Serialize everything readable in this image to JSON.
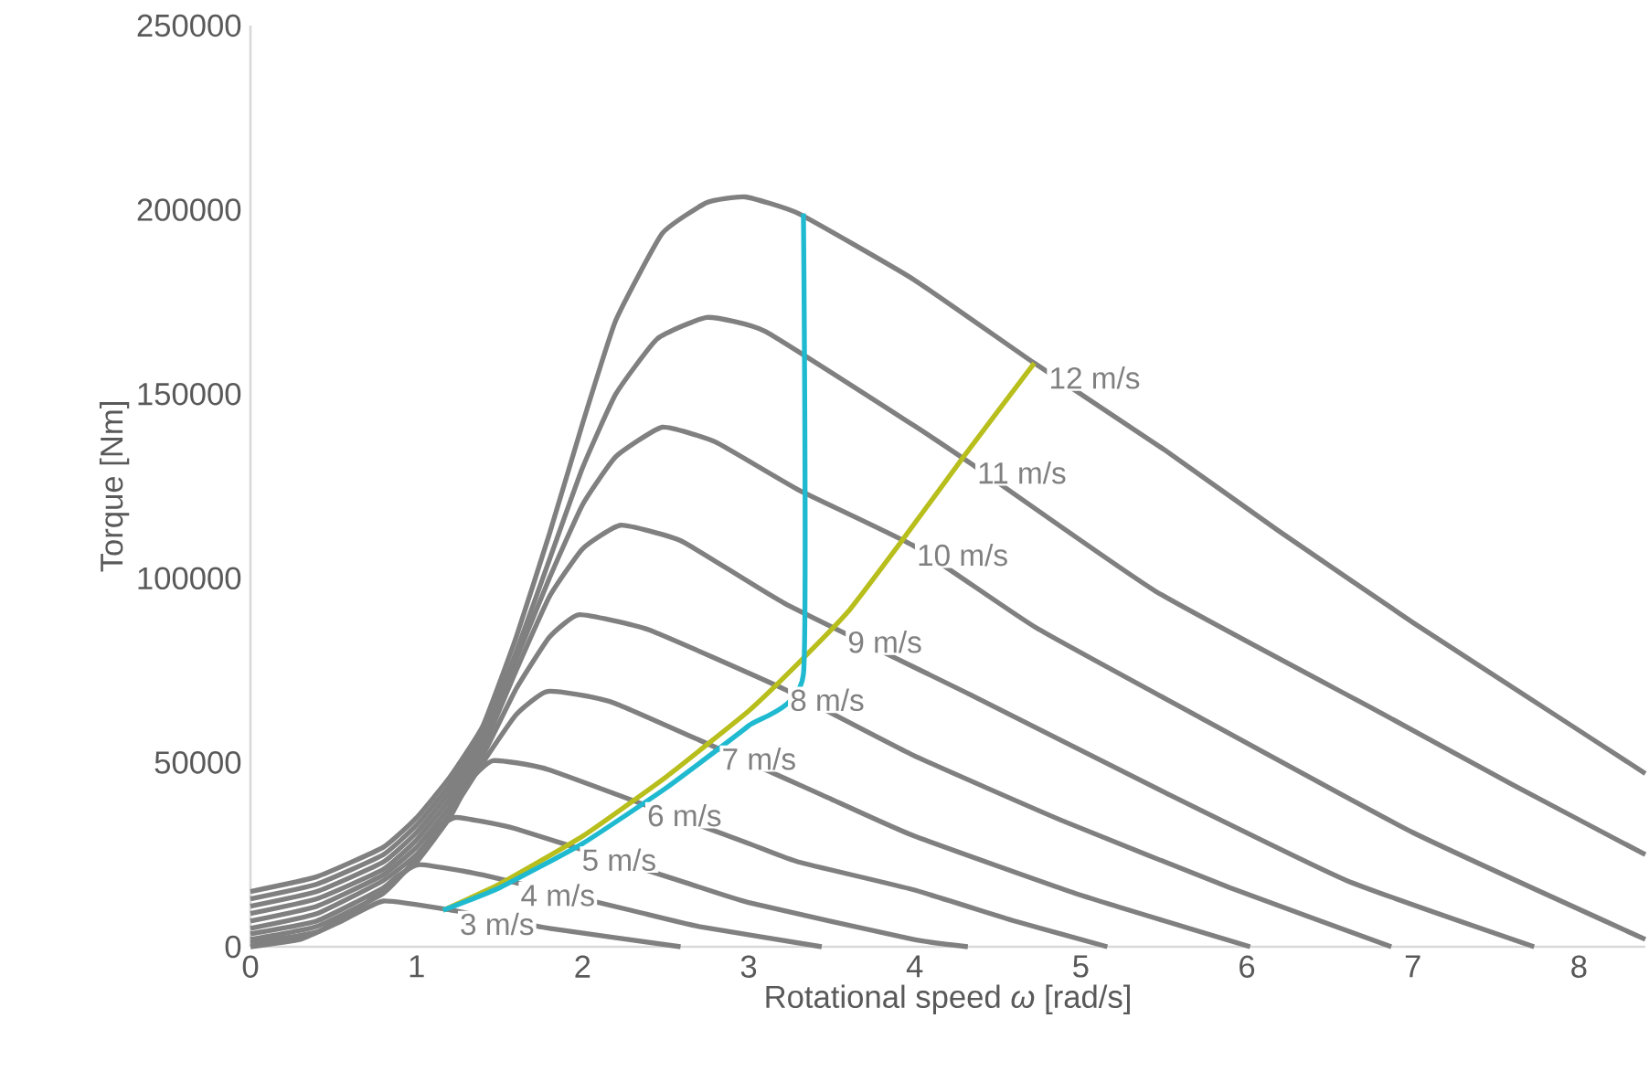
{
  "chart_data": {
    "type": "line",
    "xlabel": "Rotational speed *ω* [rad/s]",
    "ylabel": "Torque [Nm]",
    "xlim": [
      0,
      8.4
    ],
    "ylim": [
      0,
      250000
    ],
    "xticks": [
      0,
      1,
      2,
      3,
      4,
      5,
      6,
      7,
      8
    ],
    "yticks": [
      0,
      50000,
      100000,
      150000,
      200000,
      250000
    ],
    "grid": false,
    "marker": "none",
    "line_style": "solid",
    "series": [
      {
        "name": "3 m/s",
        "color": "#808080",
        "x": [
          0,
          0.3,
          0.55,
          0.8,
          1.2,
          1.8,
          2.59
        ],
        "values": [
          0,
          2000,
          7000,
          12400,
          10000,
          5000,
          0
        ]
      },
      {
        "name": "4 m/s",
        "color": "#808080",
        "x": [
          0,
          0.4,
          0.7,
          0.88,
          1.02,
          1.4,
          2.3,
          2.7,
          3.44
        ],
        "values": [
          1000,
          4000,
          12000,
          19000,
          22300,
          19500,
          9800,
          5500,
          0
        ]
      },
      {
        "name": "5 m/s",
        "color": "#808080",
        "x": [
          0,
          0.4,
          0.8,
          1.0,
          1.12,
          1.24,
          1.6,
          2.6,
          3.0,
          3.99,
          4.32
        ],
        "values": [
          2000,
          5500,
          14500,
          24000,
          32000,
          35100,
          32000,
          17700,
          12000,
          2000,
          0
        ]
      },
      {
        "name": "6 m/s",
        "color": "#808080",
        "x": [
          0,
          0.4,
          0.8,
          1.0,
          1.2,
          1.32,
          1.46,
          1.8,
          3.0,
          3.3,
          3.99,
          4.6,
          5.16
        ],
        "values": [
          3500,
          7000,
          16000,
          23000,
          35000,
          45000,
          50500,
          48000,
          28000,
          23000,
          15500,
          7000,
          0
        ]
      },
      {
        "name": "7 m/s",
        "color": "#808080",
        "x": [
          0,
          0.4,
          0.8,
          1.0,
          1.2,
          1.4,
          1.6,
          1.79,
          2.2,
          3.5,
          3.99,
          5.0,
          6.02
        ],
        "values": [
          5000,
          9000,
          18000,
          25000,
          36000,
          50000,
          63000,
          69300,
          66000,
          40000,
          30200,
          14000,
          0
        ]
      },
      {
        "name": "8 m/s",
        "color": "#808080",
        "x": [
          0,
          0.4,
          0.8,
          1.0,
          1.2,
          1.4,
          1.6,
          1.8,
          1.98,
          2.4,
          3.22,
          3.99,
          4.9,
          5.9,
          6.87
        ],
        "values": [
          7000,
          11000,
          19500,
          27000,
          38000,
          52000,
          70000,
          84000,
          90100,
          86000,
          69800,
          52000,
          34000,
          16000,
          0
        ]
      },
      {
        "name": "9 m/s",
        "color": "#808080",
        "x": [
          0,
          0.4,
          0.8,
          1.0,
          1.2,
          1.4,
          1.6,
          1.8,
          2.0,
          2.23,
          2.6,
          3.22,
          4.34,
          5.5,
          6.6,
          7.73
        ],
        "values": [
          9000,
          13000,
          21000,
          29000,
          40000,
          54000,
          75000,
          95000,
          108000,
          114400,
          110000,
          93100,
          68300,
          42000,
          18000,
          0
        ]
      },
      {
        "name": "10 m/s",
        "color": "#808080",
        "x": [
          0,
          0.4,
          0.8,
          1.0,
          1.2,
          1.4,
          1.6,
          1.8,
          2.0,
          2.2,
          2.48,
          2.8,
          3.3,
          3.99,
          4.73,
          5.67,
          7.0,
          8.4
        ],
        "values": [
          11000,
          15000,
          23000,
          31000,
          42000,
          56000,
          78000,
          100000,
          120000,
          133000,
          141000,
          137000,
          124000,
          108900,
          86600,
          63400,
          31000,
          2000
        ]
      },
      {
        "name": "11 m/s",
        "color": "#808080",
        "x": [
          0,
          0.4,
          0.8,
          1.0,
          1.2,
          1.4,
          1.6,
          1.8,
          2.0,
          2.2,
          2.45,
          2.75,
          3.1,
          3.99,
          4.32,
          5.45,
          6.81,
          7.6,
          8.4
        ],
        "values": [
          13000,
          17000,
          25000,
          33000,
          44000,
          58000,
          80000,
          105000,
          130000,
          150000,
          165000,
          170800,
          167000,
          141600,
          131700,
          96500,
          63400,
          44000,
          25000
        ]
      },
      {
        "name": "12 m/s",
        "color": "#808080",
        "x": [
          0,
          0.4,
          0.8,
          1.0,
          1.2,
          1.4,
          1.6,
          1.8,
          2.0,
          2.2,
          2.48,
          2.75,
          2.98,
          3.3,
          3.99,
          4.72,
          5.5,
          6.19,
          7.0,
          7.84,
          8.4
        ],
        "values": [
          15000,
          19000,
          27000,
          35000,
          46000,
          60000,
          84000,
          112000,
          142000,
          170000,
          193600,
          202000,
          203500,
          199000,
          181200,
          158400,
          135000,
          112900,
          88000,
          63400,
          47000
        ]
      },
      {
        "color": "#b8be1c",
        "x": [
          1.16,
          1.5,
          2.0,
          2.5,
          3.0,
          3.3,
          3.6,
          3.91,
          4.29,
          4.72
        ],
        "values": [
          9900,
          17000,
          30000,
          46000,
          64000,
          77000,
          91000,
          109400,
          132700,
          158400
        ]
      },
      {
        "color": "#1fbad0",
        "x": [
          1.16,
          1.5,
          2.0,
          2.5,
          3.0,
          3.33,
          3.33
        ],
        "values": [
          9900,
          16000,
          28000,
          43000,
          60000,
          74000,
          199000
        ]
      }
    ]
  }
}
